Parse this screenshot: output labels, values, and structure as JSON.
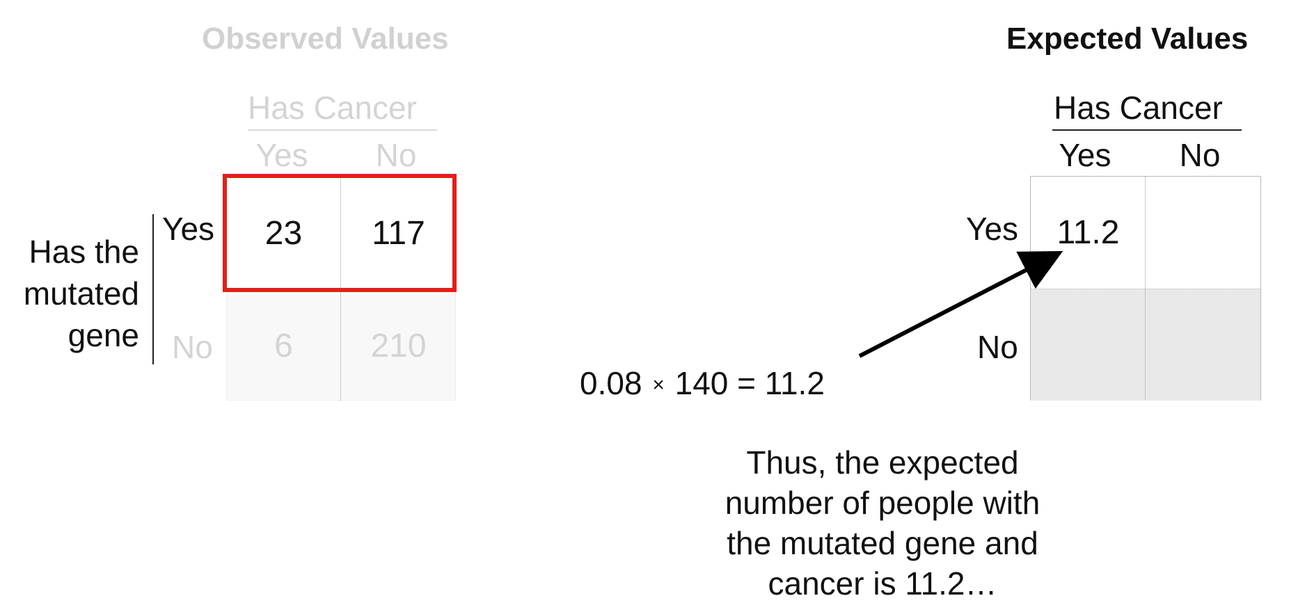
{
  "observed": {
    "title": "Observed Values",
    "col_group": "Has Cancer",
    "col_yes": "Yes",
    "col_no": "No",
    "row_group_lines": [
      "Has the",
      "mutated",
      "gene"
    ],
    "row_yes": "Yes",
    "row_no": "No",
    "cells": [
      [
        "23",
        "117"
      ],
      [
        "6",
        "210"
      ]
    ]
  },
  "expected": {
    "title": "Expected Values",
    "col_group": "Has Cancer",
    "col_yes": "Yes",
    "col_no": "No",
    "row_yes": "Yes",
    "row_no": "No",
    "cells": [
      [
        "11.2",
        ""
      ],
      [
        "",
        ""
      ]
    ]
  },
  "formula": {
    "left": "0.08",
    "times": "×",
    "right": "140 = 11.2"
  },
  "explanation_lines": [
    "Thus, the expected",
    "number of people with",
    "the mutated gene and",
    "cancer is 11.2…"
  ],
  "colors": {
    "highlight": "#e0201b",
    "dim_text": "#d4d4d4",
    "shaded_cell": "#e8e9e8"
  }
}
